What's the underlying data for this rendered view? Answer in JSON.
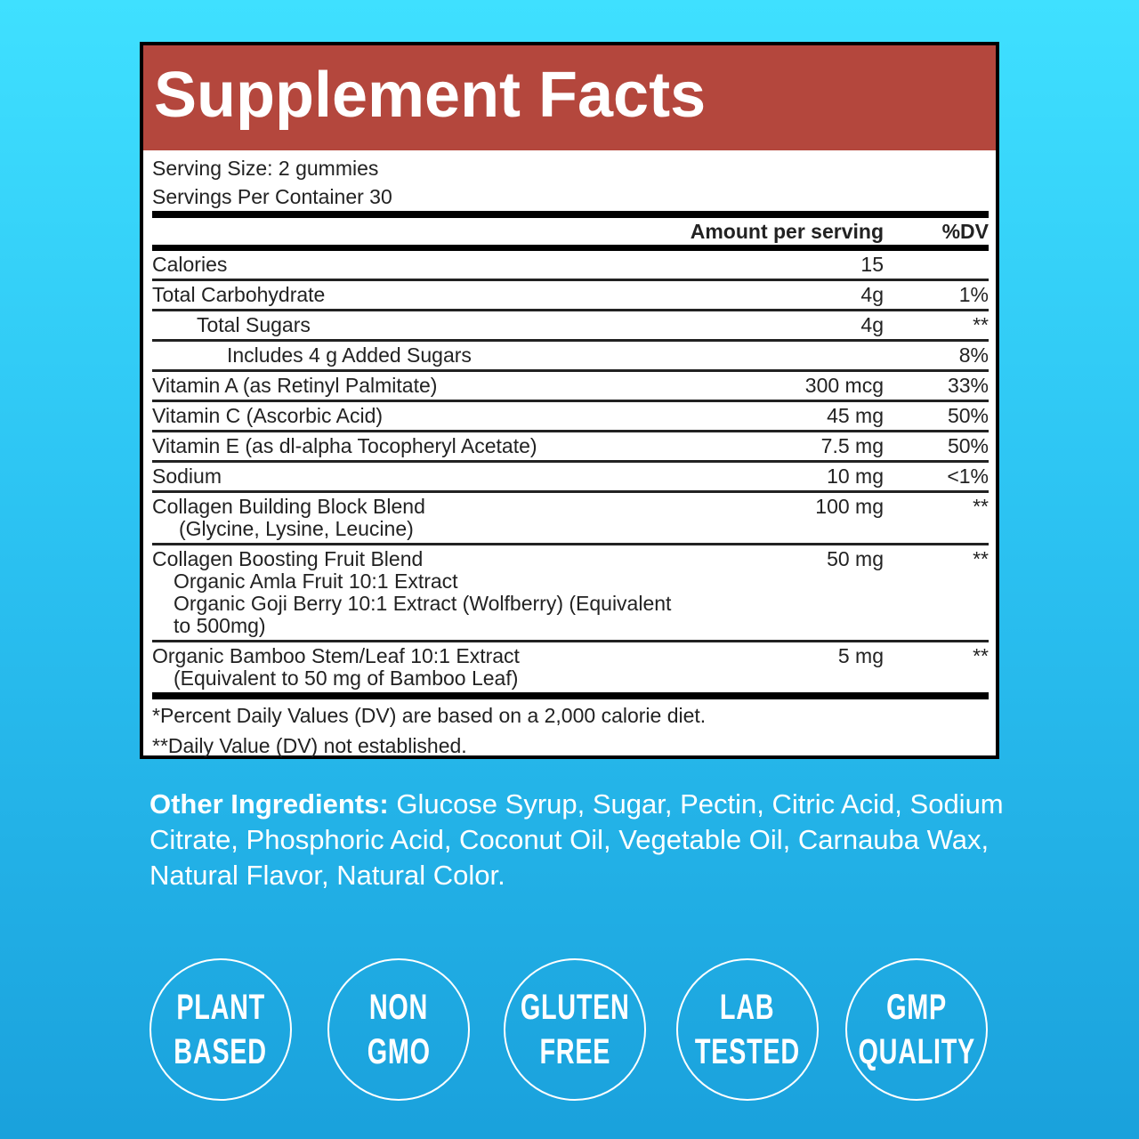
{
  "panel": {
    "title": "Supplement Facts",
    "serving_size": "Serving Size: 2 gummies",
    "servings_per_container": "Servings Per Container 30",
    "header": {
      "amount": "Amount per serving",
      "dv": "%DV"
    },
    "rows": [
      {
        "lines": [
          "Calories"
        ],
        "amount": "15"
      },
      {
        "lines": [
          "Total Carbohydrate"
        ],
        "amount": "4g",
        "dv": "1%"
      },
      {
        "lines": [
          "Total Sugars"
        ],
        "amount": "4g",
        "dv": "**"
      },
      {
        "lines": [
          "Includes 4 g Added Sugars"
        ],
        "dv": "8%"
      },
      {
        "lines": [
          "Vitamin A (as Retinyl Palmitate)"
        ],
        "amount": "300 mcg",
        "dv": "33%"
      },
      {
        "lines": [
          "Vitamin C (Ascorbic Acid)"
        ],
        "amount": "45 mg",
        "dv": "50%"
      },
      {
        "lines": [
          "Vitamin E (as dl-alpha Tocopheryl Acetate)"
        ],
        "amount": "7.5 mg",
        "dv": "50%"
      },
      {
        "lines": [
          "Sodium"
        ],
        "amount": "10 mg",
        "dv": "<1%"
      },
      {
        "lines": [
          "Collagen Building Block Blend",
          "(Glycine, Lysine, Leucine)"
        ],
        "amount": "100 mg",
        "dv": "**"
      },
      {
        "lines": [
          "Collagen Boosting Fruit Blend",
          "Organic Amla Fruit 10:1 Extract",
          "Organic Goji Berry 10:1 Extract (Wolfberry) (Equivalent to 500mg)"
        ],
        "amount": "50 mg",
        "dv": "**"
      },
      {
        "lines": [
          "Organic Bamboo Stem/Leaf 10:1 Extract",
          "(Equivalent to 50 mg of Bamboo Leaf)"
        ],
        "amount": "5 mg",
        "dv": "**"
      }
    ],
    "footnotes": [
      "*Percent Daily Values (DV) are based on a 2,000 calorie diet.",
      "**Daily Value (DV) not established."
    ]
  },
  "other_ingredients": {
    "label": "Other Ingredients:",
    "text": "Glucose Syrup, Sugar, Pectin, Citric Acid, Sodium Citrate, Phosphoric Acid, Coconut Oil, Vegetable Oil, Carnauba Wax, Natural Flavor, Natural Color."
  },
  "badges": [
    [
      "PLANT",
      "BASED"
    ],
    [
      "NON",
      "GMO"
    ],
    [
      "GLUTEN",
      "FREE"
    ],
    [
      "LAB",
      "TESTED"
    ],
    [
      "GMP",
      "QUALITY"
    ]
  ]
}
